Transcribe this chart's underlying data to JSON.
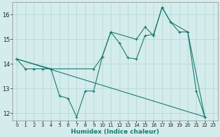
{
  "title": "",
  "xlabel": "Humidex (Indice chaleur)",
  "bg_color": "#d4ecec",
  "line_color": "#1a7a6e",
  "grid_color": "#b8d8d8",
  "xlim": [
    -0.5,
    23.5
  ],
  "ylim": [
    11.7,
    16.5
  ],
  "xticks": [
    0,
    1,
    2,
    3,
    4,
    5,
    6,
    7,
    8,
    9,
    10,
    11,
    12,
    13,
    14,
    15,
    16,
    17,
    18,
    19,
    20,
    21,
    22,
    23
  ],
  "yticks": [
    12,
    13,
    14,
    15,
    16
  ],
  "line1_x": [
    0,
    1,
    2,
    3,
    4,
    5,
    6,
    7,
    8,
    9,
    10,
    11,
    12,
    13,
    14,
    15,
    16,
    17,
    18,
    19,
    20,
    21,
    22
  ],
  "line1_y": [
    14.2,
    13.8,
    13.8,
    13.8,
    13.8,
    12.7,
    12.6,
    11.85,
    12.9,
    12.9,
    14.3,
    15.3,
    14.85,
    14.25,
    14.2,
    15.15,
    15.2,
    16.3,
    15.7,
    15.3,
    15.3,
    12.9,
    11.85
  ],
  "line2_x": [
    0,
    4,
    9,
    10,
    11,
    14,
    15,
    16,
    17,
    18,
    20,
    22
  ],
  "line2_y": [
    14.2,
    13.8,
    13.8,
    14.3,
    15.3,
    15.0,
    15.5,
    15.15,
    16.3,
    15.7,
    15.3,
    11.85
  ],
  "line3_x": [
    0,
    22
  ],
  "line3_y": [
    14.2,
    11.85
  ]
}
